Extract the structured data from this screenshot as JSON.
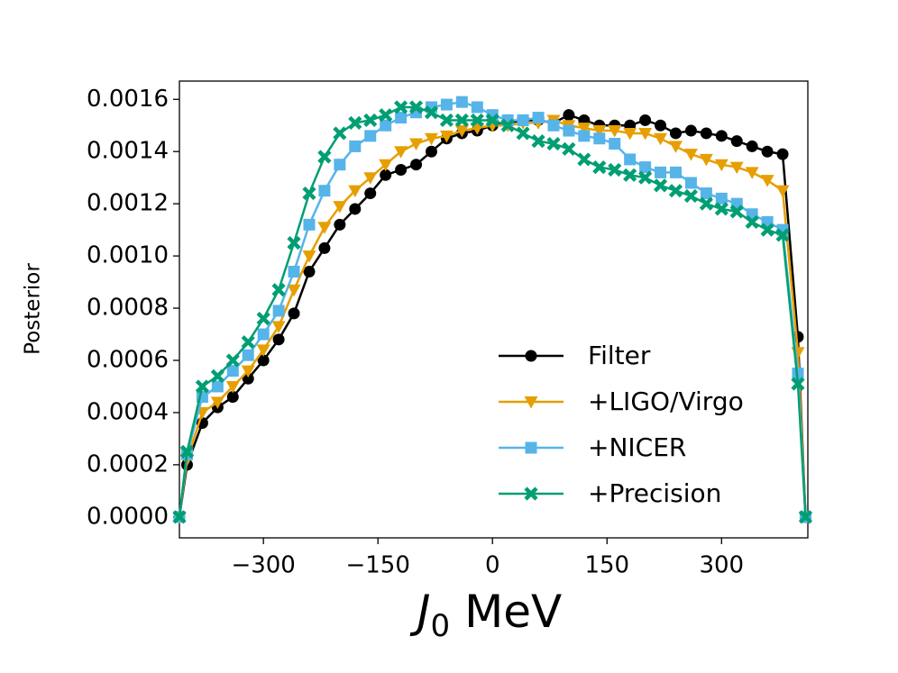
{
  "chart_data": {
    "type": "line",
    "xlabel": {
      "symbol": "J",
      "subscript": "0",
      "unit": "MeV"
    },
    "ylabel": "Posterior",
    "x": [
      -410,
      -400,
      -380,
      -360,
      -340,
      -320,
      -300,
      -280,
      -260,
      -240,
      -220,
      -200,
      -180,
      -160,
      -140,
      -120,
      -100,
      -80,
      -60,
      -40,
      -20,
      0,
      20,
      40,
      60,
      80,
      100,
      120,
      140,
      160,
      180,
      200,
      220,
      240,
      260,
      280,
      300,
      320,
      340,
      360,
      380,
      400,
      410
    ],
    "series": [
      {
        "name": "Filter",
        "color": "#000000",
        "marker": "circle",
        "values": [
          0,
          0.0002,
          0.00036,
          0.00042,
          0.00046,
          0.00053,
          0.0006,
          0.00068,
          0.00078,
          0.00094,
          0.00103,
          0.00112,
          0.00118,
          0.00124,
          0.00131,
          0.00133,
          0.00135,
          0.0014,
          0.00145,
          0.00147,
          0.00148,
          0.0015,
          0.00151,
          0.00152,
          0.00152,
          0.00151,
          0.00154,
          0.00152,
          0.0015,
          0.0015,
          0.0015,
          0.00152,
          0.0015,
          0.00147,
          0.00148,
          0.00147,
          0.00146,
          0.00144,
          0.00142,
          0.0014,
          0.00139,
          0.00069,
          0
        ]
      },
      {
        "name": "+LIGO/Virgo",
        "color": "#e69f00",
        "marker": "triangle-down",
        "values": [
          0,
          0.00022,
          0.0004,
          0.00044,
          0.0005,
          0.00056,
          0.00064,
          0.00073,
          0.00087,
          0.001,
          0.00111,
          0.00119,
          0.00125,
          0.0013,
          0.00135,
          0.0014,
          0.00143,
          0.00145,
          0.00146,
          0.00148,
          0.00149,
          0.0015,
          0.0015,
          0.00151,
          0.00151,
          0.00152,
          0.0015,
          0.00149,
          0.00148,
          0.00148,
          0.00147,
          0.00147,
          0.00145,
          0.00142,
          0.00139,
          0.00137,
          0.00135,
          0.00134,
          0.00132,
          0.00129,
          0.00125,
          0.00063,
          0
        ]
      },
      {
        "name": "+NICER",
        "color": "#56b4e9",
        "marker": "square",
        "values": [
          0,
          0.00024,
          0.00046,
          0.0005,
          0.00056,
          0.00062,
          0.0007,
          0.00079,
          0.00094,
          0.00112,
          0.00125,
          0.00135,
          0.00142,
          0.00146,
          0.0015,
          0.00153,
          0.00155,
          0.00157,
          0.00158,
          0.00159,
          0.00157,
          0.00154,
          0.00152,
          0.00152,
          0.00153,
          0.0015,
          0.00148,
          0.00146,
          0.00145,
          0.00143,
          0.00137,
          0.00134,
          0.00132,
          0.00132,
          0.00128,
          0.00124,
          0.00122,
          0.0012,
          0.00116,
          0.00113,
          0.0011,
          0.00055,
          0
        ]
      },
      {
        "name": "+Precision",
        "color": "#009e73",
        "marker": "x",
        "values": [
          0,
          0.00025,
          0.0005,
          0.00054,
          0.0006,
          0.00067,
          0.00076,
          0.00087,
          0.00105,
          0.00124,
          0.00138,
          0.00147,
          0.00151,
          0.00152,
          0.00154,
          0.00157,
          0.00157,
          0.00155,
          0.00152,
          0.00152,
          0.00152,
          0.00152,
          0.0015,
          0.00147,
          0.00144,
          0.00143,
          0.00141,
          0.00137,
          0.00134,
          0.00133,
          0.00131,
          0.0013,
          0.00127,
          0.00125,
          0.00123,
          0.0012,
          0.00118,
          0.00117,
          0.00113,
          0.0011,
          0.00108,
          0.00051,
          0
        ]
      }
    ],
    "xlim": [
      -410,
      413
    ],
    "ylim": [
      -8e-05,
      0.00167
    ],
    "xticks": [
      {
        "value": -300,
        "label": "−300"
      },
      {
        "value": -150,
        "label": "−150"
      },
      0,
      150,
      300
    ],
    "yticks": [
      {
        "value": 0,
        "label": "0.0000"
      },
      {
        "value": 0.0002,
        "label": "0.0002"
      },
      {
        "value": 0.0004,
        "label": "0.0004"
      },
      {
        "value": 0.0006,
        "label": "0.0006"
      },
      {
        "value": 0.0008,
        "label": "0.0008"
      },
      {
        "value": 0.001,
        "label": "0.0010"
      },
      {
        "value": 0.0012,
        "label": "0.0012"
      },
      {
        "value": 0.0014,
        "label": "0.0014"
      },
      {
        "value": 0.0016,
        "label": "0.0016"
      }
    ],
    "grid": false,
    "legend": "lower right"
  }
}
